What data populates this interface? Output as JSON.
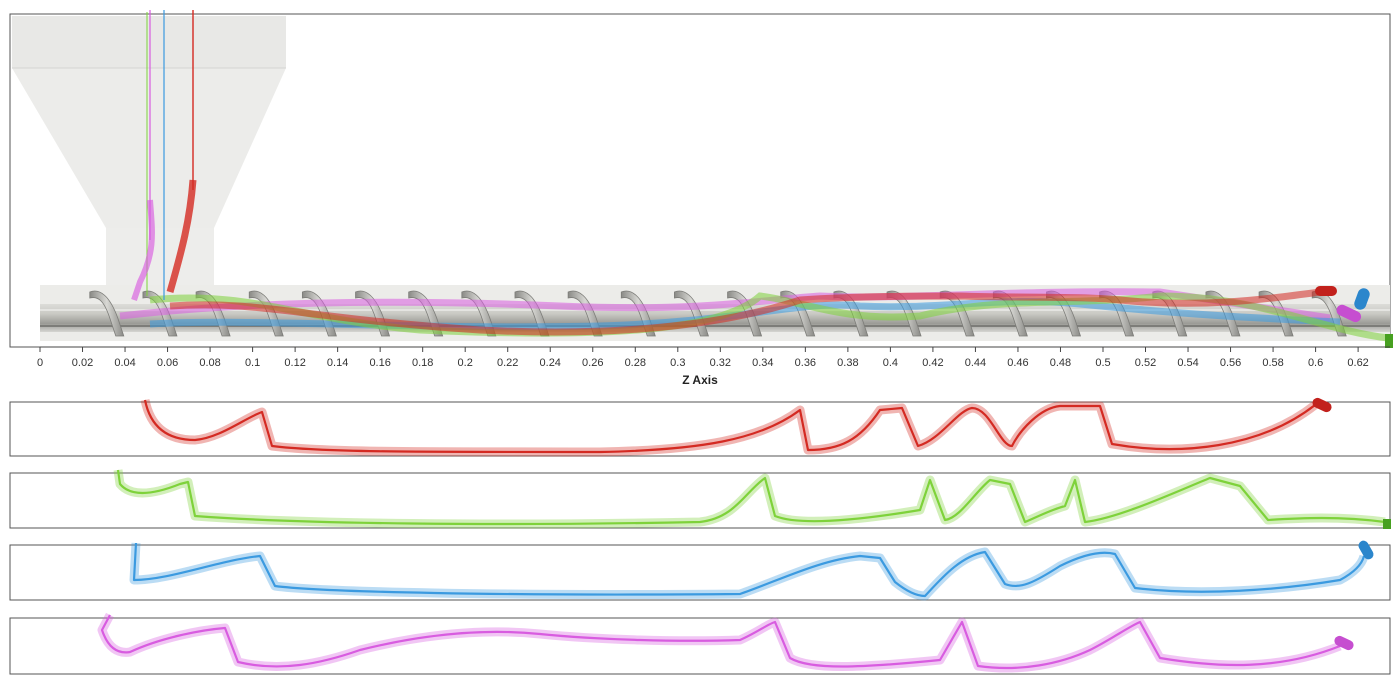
{
  "axis": {
    "title": "Z Axis",
    "min": 0,
    "max": 0.635,
    "ticks": [
      "0",
      "0.02",
      "0.04",
      "0.06",
      "0.08",
      "0.1",
      "0.12",
      "0.14",
      "0.16",
      "0.18",
      "0.2",
      "0.22",
      "0.24",
      "0.26",
      "0.28",
      "0.3",
      "0.32",
      "0.34",
      "0.36",
      "0.38",
      "0.4",
      "0.42",
      "0.44",
      "0.46",
      "0.48",
      "0.5",
      "0.52",
      "0.54",
      "0.56",
      "0.58",
      "0.6",
      "0.62"
    ]
  },
  "screw": {
    "flight_count": 24,
    "start": 0.03,
    "pitch": 0.025
  },
  "trajectories": [
    {
      "name": "red",
      "color": "#d42a22",
      "end": "capsule"
    },
    {
      "name": "green",
      "color": "#7ed23a",
      "end": "square"
    },
    {
      "name": "blue",
      "color": "#3b9ae0",
      "end": "capsule"
    },
    {
      "name": "magenta",
      "color": "#d85ce0",
      "end": "capsule"
    }
  ]
}
